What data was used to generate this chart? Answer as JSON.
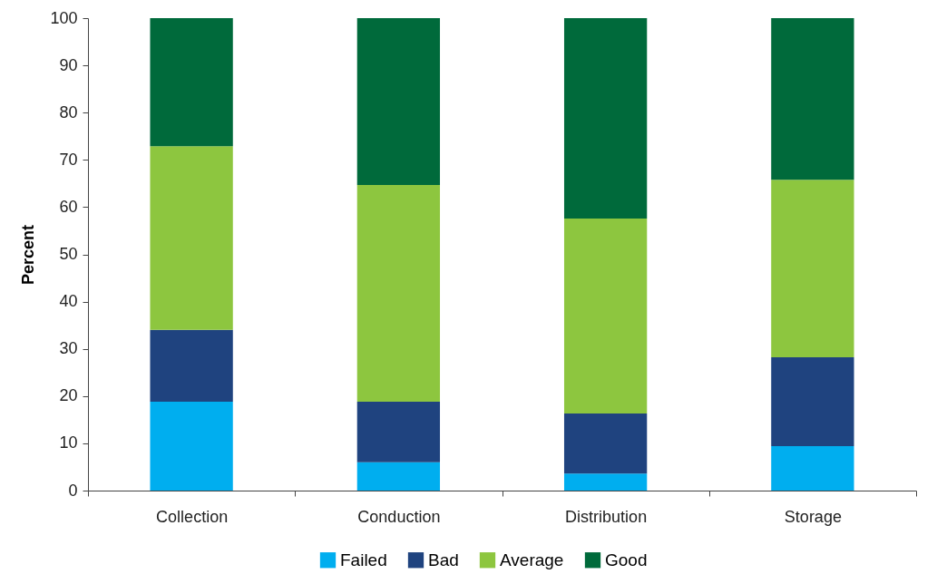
{
  "chart_data": {
    "type": "bar",
    "stacked": true,
    "ylabel": "Percent",
    "categories": [
      "Collection",
      "Conduction",
      "Distribution",
      "Storage"
    ],
    "series": [
      {
        "name": "Failed",
        "color": "#00aeef",
        "values": [
          18.8,
          6.0,
          3.6,
          9.4
        ]
      },
      {
        "name": "Bad",
        "color": "#1f437f",
        "values": [
          15.2,
          12.8,
          12.7,
          18.8
        ]
      },
      {
        "name": "Average",
        "color": "#8dc63f",
        "values": [
          38.9,
          45.9,
          41.3,
          37.6
        ]
      },
      {
        "name": "Good",
        "color": "#006a3b",
        "values": [
          27.1,
          35.3,
          42.4,
          34.2
        ]
      }
    ],
    "ylim": [
      0,
      100
    ],
    "yticks": [
      0,
      10,
      20,
      30,
      40,
      50,
      60,
      70,
      80,
      90,
      100
    ],
    "grid": false,
    "legend": "bottom"
  }
}
